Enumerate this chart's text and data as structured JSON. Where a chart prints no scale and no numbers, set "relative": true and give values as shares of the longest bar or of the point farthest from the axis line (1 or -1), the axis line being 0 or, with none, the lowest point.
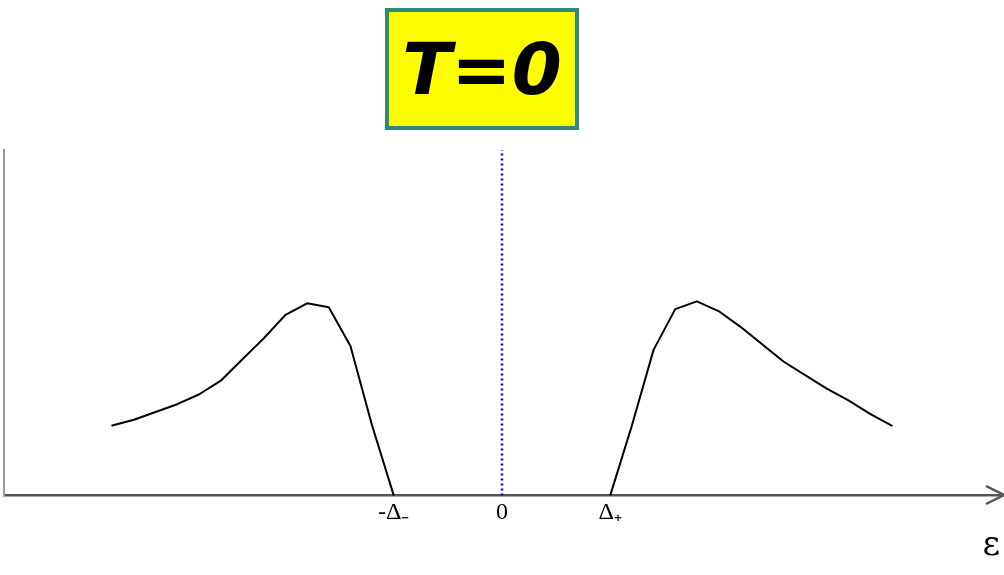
{
  "chart_data": {
    "type": "line",
    "title": "T=0",
    "xlabel": "ε",
    "relative": true,
    "categories": [
      null,
      null,
      null,
      null,
      null,
      null,
      null,
      null,
      null,
      null,
      null,
      null,
      null,
      null,
      null,
      null,
      null,
      null,
      "-Δ₋",
      null,
      null,
      null,
      null,
      "0",
      null,
      null,
      null,
      null,
      "Δ₊",
      null,
      null,
      null,
      null,
      null,
      null,
      null,
      null,
      null,
      null,
      null,
      null,
      null,
      null,
      null,
      null,
      null,
      null
    ],
    "series": [
      {
        "color": "#000000",
        "values": [
          null,
          null,
          null,
          null,
          null,
          0.36,
          0.39,
          0.43,
          0.47,
          0.52,
          0.59,
          0.7,
          0.81,
          0.93,
          0.99,
          0.97,
          0.77,
          0.36,
          0,
          null,
          null,
          null,
          null,
          null,
          null,
          null,
          null,
          null,
          0,
          0.36,
          0.75,
          0.96,
          1,
          0.95,
          0.87,
          0.78,
          0.69,
          0.62,
          0.55,
          0.49,
          0.42,
          0.36,
          null,
          null,
          null,
          null,
          null
        ]
      }
    ],
    "ref_lines": [
      {
        "axis": "x",
        "value": "0",
        "color": "#0000ff",
        "line_style": "dotted"
      }
    ],
    "grid": false,
    "legend": false,
    "marker": "none",
    "line_style": "solid"
  }
}
